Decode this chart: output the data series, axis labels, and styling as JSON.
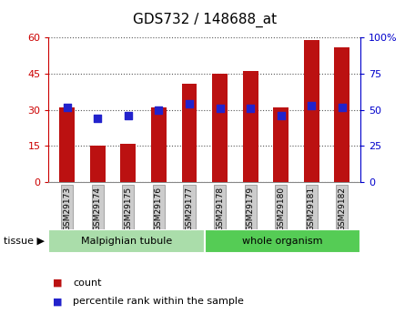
{
  "title": "GDS732 / 148688_at",
  "samples": [
    "GSM29173",
    "GSM29174",
    "GSM29175",
    "GSM29176",
    "GSM29177",
    "GSM29178",
    "GSM29179",
    "GSM29180",
    "GSM29181",
    "GSM29182"
  ],
  "counts": [
    31,
    15,
    16,
    31,
    41,
    45,
    46,
    31,
    59,
    56
  ],
  "percentiles": [
    52,
    44,
    46,
    50,
    54,
    51,
    51,
    46,
    53,
    52
  ],
  "left_ylim": [
    0,
    60
  ],
  "right_ylim": [
    0,
    100
  ],
  "left_yticks": [
    0,
    15,
    30,
    45,
    60
  ],
  "right_yticks": [
    0,
    25,
    50,
    75,
    100
  ],
  "right_yticklabels": [
    "0",
    "25",
    "50",
    "75",
    "100%"
  ],
  "bar_color": "#bb1111",
  "dot_color": "#2222cc",
  "tissue_groups": [
    {
      "label": "Malpighian tubule",
      "start": 0,
      "end": 4,
      "color": "#aaddaa"
    },
    {
      "label": "whole organism",
      "start": 5,
      "end": 9,
      "color": "#55cc55"
    }
  ],
  "legend_count_label": "count",
  "legend_pct_label": "percentile rank within the sample",
  "tissue_label": "tissue",
  "background_color": "#ffffff",
  "title_fontsize": 11,
  "axis_label_color_left": "#cc0000",
  "axis_label_color_right": "#0000cc",
  "bar_width": 0.5,
  "dot_size": 30
}
